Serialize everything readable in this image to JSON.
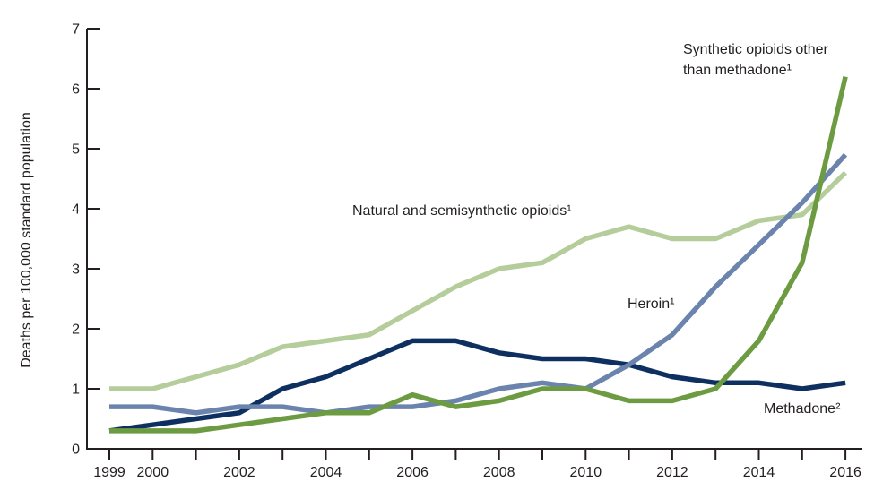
{
  "figure": {
    "background": "#ffffff",
    "text_color": "#231f20"
  },
  "chart_data": {
    "type": "line",
    "title": "",
    "xlabel": "",
    "ylabel": "Deaths per 100,000 standard population",
    "ylim": [
      0,
      7
    ],
    "yticks": [
      0,
      1,
      2,
      3,
      4,
      5,
      6,
      7
    ],
    "grid": false,
    "legend_position": "inline-annotations",
    "axis_color": "#231f20",
    "x": [
      1999,
      2000,
      2001,
      2002,
      2003,
      2004,
      2005,
      2006,
      2007,
      2008,
      2009,
      2010,
      2011,
      2012,
      2013,
      2014,
      2015,
      2016
    ],
    "x_labeled_ticks": [
      1999,
      2000,
      2002,
      2004,
      2006,
      2008,
      2010,
      2012,
      2014,
      2016
    ],
    "series": [
      {
        "name": "natural-semisynthetic-opioids",
        "label": "Natural and semisynthetic opioids¹",
        "color": "#B5CD9B",
        "values": [
          1.0,
          1.0,
          1.2,
          1.4,
          1.7,
          1.8,
          1.9,
          2.3,
          2.7,
          3.0,
          3.1,
          3.5,
          3.7,
          3.5,
          3.5,
          3.8,
          3.9,
          4.6
        ]
      },
      {
        "name": "methadone",
        "label": "Methadone²",
        "color": "#0E3060",
        "values": [
          0.3,
          0.4,
          0.5,
          0.6,
          1.0,
          1.2,
          1.5,
          1.8,
          1.8,
          1.6,
          1.5,
          1.5,
          1.4,
          1.2,
          1.1,
          1.1,
          1.0,
          1.1
        ]
      },
      {
        "name": "heroin",
        "label": "Heroin¹",
        "color": "#6B84AE",
        "values": [
          0.7,
          0.7,
          0.6,
          0.7,
          0.7,
          0.6,
          0.7,
          0.7,
          0.8,
          1.0,
          1.1,
          1.0,
          1.4,
          1.9,
          2.7,
          3.4,
          4.1,
          4.9
        ]
      },
      {
        "name": "synthetic-opioids-other-than-methadone",
        "label": "Synthetic opioids other than methadone¹",
        "color": "#6D9B41",
        "values": [
          0.3,
          0.3,
          0.3,
          0.4,
          0.5,
          0.6,
          0.6,
          0.9,
          0.7,
          0.8,
          1.0,
          1.0,
          0.8,
          0.8,
          1.0,
          1.8,
          3.1,
          6.2
        ]
      }
    ]
  }
}
